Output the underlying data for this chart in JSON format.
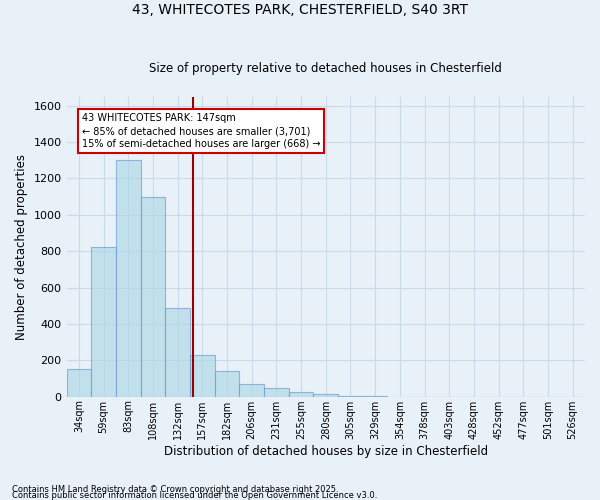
{
  "title1": "43, WHITECOTES PARK, CHESTERFIELD, S40 3RT",
  "title2": "Size of property relative to detached houses in Chesterfield",
  "xlabel": "Distribution of detached houses by size in Chesterfield",
  "ylabel": "Number of detached properties",
  "categories": [
    "34sqm",
    "59sqm",
    "83sqm",
    "108sqm",
    "132sqm",
    "157sqm",
    "182sqm",
    "206sqm",
    "231sqm",
    "255sqm",
    "280sqm",
    "305sqm",
    "329sqm",
    "354sqm",
    "378sqm",
    "403sqm",
    "428sqm",
    "452sqm",
    "477sqm",
    "501sqm",
    "526sqm"
  ],
  "bar_heights": [
    150,
    820,
    1300,
    1100,
    490,
    230,
    140,
    70,
    50,
    25,
    15,
    5,
    2,
    0,
    0,
    0,
    0,
    0,
    0,
    0,
    0
  ],
  "bar_color": "#add8e6",
  "bar_edge_color": "#6699cc",
  "bar_alpha": 0.65,
  "vline_x": 4.62,
  "vline_color": "#990000",
  "annotation_text": "43 WHITECOTES PARK: 147sqm\n← 85% of detached houses are smaller (3,701)\n15% of semi-detached houses are larger (668) →",
  "annotation_box_color": "#ffffff",
  "annotation_border_color": "#cc0000",
  "ylim": [
    0,
    1650
  ],
  "yticks": [
    0,
    200,
    400,
    600,
    800,
    1000,
    1200,
    1400,
    1600
  ],
  "grid_color": "#ccd9e8",
  "background_color": "#e8f0f8",
  "footer1": "Contains HM Land Registry data © Crown copyright and database right 2025.",
  "footer2": "Contains public sector information licensed under the Open Government Licence v3.0."
}
